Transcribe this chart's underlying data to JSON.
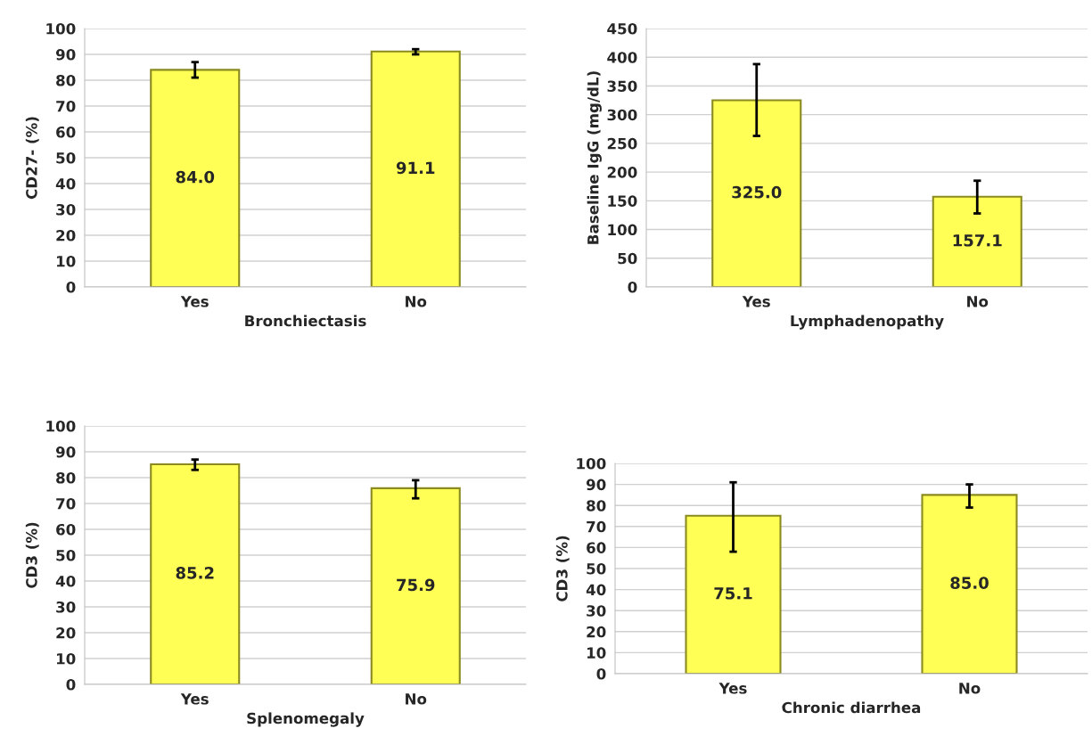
{
  "chart_data": [
    {
      "type": "bar",
      "xlabel": "Bronchiectasis",
      "ylabel": "CD27- (%)",
      "categories": [
        "Yes",
        "No"
      ],
      "values": [
        84.0,
        91.1
      ],
      "errors": [
        [
          81,
          87
        ],
        [
          90,
          92
        ]
      ],
      "value_labels": [
        "84.0",
        "91.1"
      ],
      "color": "#ffff55",
      "ylim": [
        0,
        100
      ],
      "yticks": [
        0,
        10,
        20,
        30,
        40,
        50,
        60,
        70,
        80,
        90,
        100
      ],
      "grid": "y"
    },
    {
      "type": "bar",
      "xlabel": "Lymphadenopathy",
      "ylabel": "Baseline IgG (mg/dL)",
      "categories": [
        "Yes",
        "No"
      ],
      "values": [
        325.0,
        157.1
      ],
      "errors": [
        [
          263,
          388
        ],
        [
          128,
          185
        ]
      ],
      "value_labels": [
        "325.0",
        "157.1"
      ],
      "color": "#ffff55",
      "ylim": [
        0,
        450
      ],
      "yticks": [
        0,
        50,
        100,
        150,
        200,
        250,
        300,
        350,
        400,
        450
      ],
      "grid": "y"
    },
    {
      "type": "bar",
      "xlabel": "Splenomegaly",
      "ylabel": "CD3 (%)",
      "categories": [
        "Yes",
        "No"
      ],
      "values": [
        85.2,
        75.9
      ],
      "errors": [
        [
          83,
          87
        ],
        [
          72,
          79
        ]
      ],
      "value_labels": [
        "85.2",
        "75.9"
      ],
      "color": "#ffff55",
      "ylim": [
        0,
        100
      ],
      "yticks": [
        0,
        10,
        20,
        30,
        40,
        50,
        60,
        70,
        80,
        90,
        100
      ],
      "grid": "y"
    },
    {
      "type": "bar",
      "xlabel": "Chronic diarrhea",
      "ylabel": "CD3 (%)",
      "categories": [
        "Yes",
        "No"
      ],
      "values": [
        75.1,
        85.0
      ],
      "errors": [
        [
          58,
          91
        ],
        [
          79,
          90
        ]
      ],
      "value_labels": [
        "75.1",
        "85.0"
      ],
      "color": "#ffff55",
      "ylim": [
        0,
        100
      ],
      "yticks": [
        0,
        10,
        20,
        30,
        40,
        50,
        60,
        70,
        80,
        90,
        100
      ],
      "grid": "y"
    }
  ]
}
